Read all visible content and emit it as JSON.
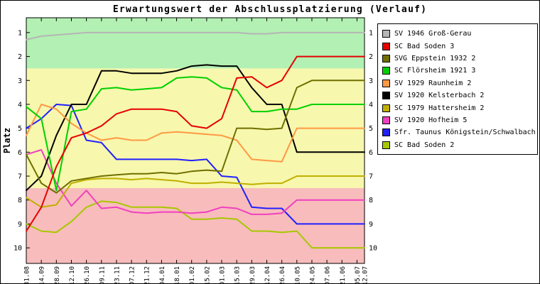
{
  "chart_data": {
    "type": "line",
    "title": "Erwartungswert der Abschlussplatzierung (Verlauf)",
    "xlabel": "",
    "ylabel": "Platz",
    "y_inverted": true,
    "ylim": [
      0.38,
      10.65
    ],
    "y_ticks": [
      1,
      2,
      3,
      4,
      5,
      6,
      7,
      8,
      9,
      10
    ],
    "x": [
      "31.08",
      "14.09",
      "28.09",
      "12.10",
      "26.10",
      "09.11",
      "23.11",
      "07.12",
      "21.12",
      "04.01",
      "18.01",
      "01.02",
      "15.02",
      "01.03",
      "15.03",
      "29.03",
      "12.04",
      "26.04",
      "10.05",
      "24.05",
      "07.06",
      "21.06",
      "05.07",
      "12.07"
    ],
    "x_offsets": [
      0,
      14,
      28,
      42,
      56,
      70,
      84,
      98,
      112,
      126,
      140,
      154,
      168,
      182,
      196,
      210,
      224,
      238,
      252,
      266,
      280,
      294,
      308,
      315
    ],
    "zones": [
      {
        "name": "top-green",
        "to": 2.5,
        "color": "#b3f0b3"
      },
      {
        "name": "middle-yellow",
        "to": 7.5,
        "color": "#f7f7ad"
      },
      {
        "name": "bottom-red",
        "to": null,
        "color": "#f8bcbc"
      }
    ],
    "legend_position": "right",
    "grid": false,
    "series": [
      {
        "name": "SV 1946 Groß-Gerau",
        "color": "#b5b5b5",
        "values": [
          1.3,
          1.15,
          1.1,
          1.05,
          1.0,
          1.0,
          1.0,
          1.0,
          1.0,
          1.0,
          1.0,
          1.0,
          1.0,
          1.0,
          1.0,
          1.05,
          1.05,
          1.0,
          1.0,
          1.0,
          1.0,
          1.0,
          1.0,
          1.0
        ]
      },
      {
        "name": "SC Bad Soden 3",
        "color": "#e60000",
        "values": [
          9.3,
          8.3,
          6.6,
          5.4,
          5.2,
          4.9,
          4.4,
          4.2,
          4.2,
          4.2,
          4.3,
          4.9,
          5.0,
          4.6,
          2.9,
          2.85,
          3.3,
          3.0,
          2.0,
          2.0,
          2.0,
          2.0,
          2.0,
          2.0
        ]
      },
      {
        "name": "SVG Eppstein 1932 2",
        "color": "#6f6f00",
        "values": [
          6.1,
          7.3,
          7.7,
          7.2,
          7.1,
          7.0,
          6.95,
          6.9,
          6.9,
          6.85,
          6.9,
          6.8,
          6.75,
          6.8,
          5.0,
          5.0,
          5.05,
          5.0,
          3.3,
          3.0,
          3.0,
          3.0,
          3.0,
          3.0
        ]
      },
      {
        "name": "SC Flörsheim 1921 3",
        "color": "#00d000",
        "values": [
          4.1,
          4.6,
          7.6,
          4.3,
          4.2,
          3.35,
          3.3,
          3.4,
          3.35,
          3.3,
          2.9,
          2.85,
          2.9,
          3.3,
          3.4,
          4.3,
          4.3,
          4.2,
          4.2,
          4.0,
          4.0,
          4.0,
          4.0,
          4.0
        ]
      },
      {
        "name": "SV 1929 Raunheim 2",
        "color": "#ff9944",
        "values": [
          5.3,
          4.0,
          4.2,
          4.8,
          5.2,
          5.5,
          5.4,
          5.5,
          5.5,
          5.2,
          5.15,
          5.2,
          5.25,
          5.3,
          5.5,
          6.3,
          6.35,
          6.4,
          5.0,
          5.0,
          5.0,
          5.0,
          5.0,
          5.0
        ]
      },
      {
        "name": "SV 1920 Kelsterbach 2",
        "color": "#000000",
        "values": [
          7.6,
          7.0,
          5.3,
          4.0,
          4.0,
          2.6,
          2.6,
          2.7,
          2.7,
          2.7,
          2.6,
          2.4,
          2.35,
          2.4,
          2.4,
          3.3,
          4.0,
          4.0,
          6.0,
          6.0,
          6.0,
          6.0,
          6.0,
          6.0
        ]
      },
      {
        "name": "SC 1979 Hattersheim 2",
        "color": "#c0b000",
        "values": [
          7.9,
          8.3,
          8.2,
          7.3,
          7.15,
          7.1,
          7.1,
          7.15,
          7.1,
          7.15,
          7.2,
          7.3,
          7.3,
          7.25,
          7.3,
          7.35,
          7.3,
          7.3,
          7.0,
          7.0,
          7.0,
          7.0,
          7.0,
          7.0
        ]
      },
      {
        "name": "SV 1920 Hofheim 5",
        "color": "#f040c0",
        "values": [
          6.1,
          5.9,
          7.3,
          8.25,
          7.6,
          8.35,
          8.3,
          8.5,
          8.55,
          8.5,
          8.5,
          8.55,
          8.5,
          8.3,
          8.35,
          8.6,
          8.6,
          8.55,
          8.0,
          8.0,
          8.0,
          8.0,
          8.0,
          8.0
        ]
      },
      {
        "name": "Sfr. Taunus Königstein/Schwalbach",
        "color": "#2020ff",
        "values": [
          5.0,
          4.6,
          4.0,
          4.05,
          5.5,
          5.6,
          6.3,
          6.3,
          6.3,
          6.3,
          6.3,
          6.35,
          6.3,
          7.0,
          7.05,
          8.3,
          8.35,
          8.35,
          9.0,
          9.0,
          9.0,
          9.0,
          9.0,
          9.0
        ]
      },
      {
        "name": "SC Bad Soden 2",
        "color": "#a6c800",
        "values": [
          9.0,
          9.3,
          9.35,
          8.9,
          8.3,
          8.05,
          8.1,
          8.3,
          8.3,
          8.3,
          8.35,
          8.8,
          8.8,
          8.75,
          8.8,
          9.3,
          9.3,
          9.35,
          9.3,
          10.0,
          10.0,
          10.0,
          10.0,
          10.0
        ]
      }
    ]
  }
}
